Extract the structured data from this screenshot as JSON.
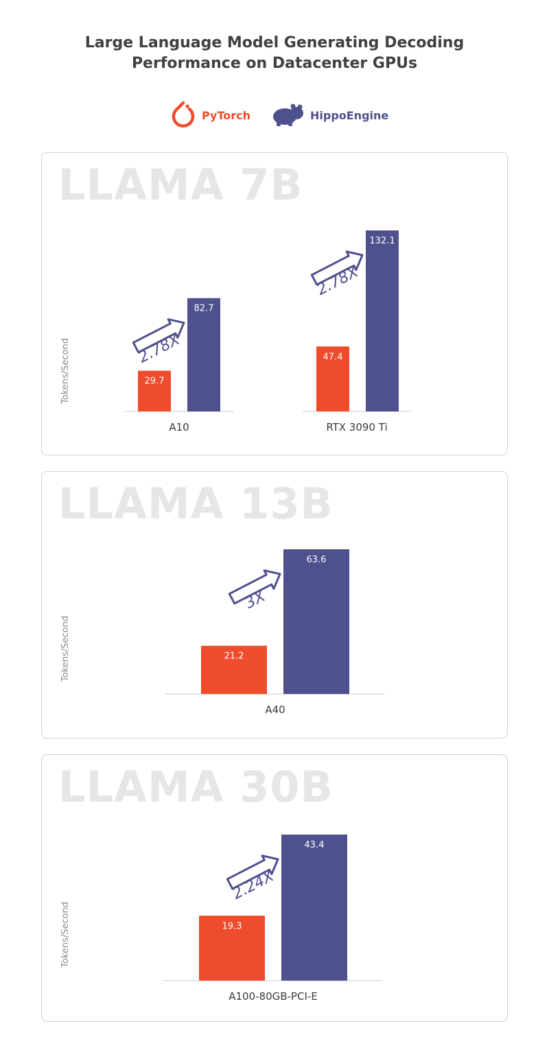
{
  "title_line1": "Large Language Model Generating Decoding",
  "title_line2": "Performance on Datacenter GPUs",
  "legend": {
    "pytorch": {
      "label": "PyTorch",
      "color": "#ee4c2c",
      "icon": "pytorch-flame-icon"
    },
    "hippo": {
      "label": "HippoEngine",
      "color": "#4f508e",
      "icon": "hippo-icon"
    }
  },
  "colors": {
    "pytorch": "#ee4c2c",
    "hippo": "#4f508e",
    "axis": "#cccccc",
    "arrow": "#4f508e"
  },
  "chart_data": [
    {
      "type": "bar",
      "title": "LLAMA 7B",
      "ylabel": "Tokens/Second",
      "categories": [
        "A10",
        "RTX 3090 Ti"
      ],
      "series": [
        {
          "name": "PyTorch",
          "values": [
            29.7,
            47.4
          ]
        },
        {
          "name": "HippoEngine",
          "values": [
            82.7,
            132.1
          ]
        }
      ],
      "speedup": [
        "2.78X",
        "2.78X"
      ],
      "ylim": [
        0,
        132.1
      ]
    },
    {
      "type": "bar",
      "title": "LLAMA 13B",
      "ylabel": "Tokens/Second",
      "categories": [
        "A40"
      ],
      "series": [
        {
          "name": "PyTorch",
          "values": [
            21.2
          ]
        },
        {
          "name": "HippoEngine",
          "values": [
            63.6
          ]
        }
      ],
      "speedup": [
        "3X"
      ],
      "ylim": [
        0,
        63.6
      ]
    },
    {
      "type": "bar",
      "title": "LLAMA 30B",
      "ylabel": "Tokens/Second",
      "categories": [
        "A100-80GB-PCI-E"
      ],
      "series": [
        {
          "name": "PyTorch",
          "values": [
            19.3
          ]
        },
        {
          "name": "HippoEngine",
          "values": [
            43.4
          ]
        }
      ],
      "speedup": [
        "2.24X"
      ],
      "ylim": [
        0,
        43.4
      ]
    }
  ]
}
